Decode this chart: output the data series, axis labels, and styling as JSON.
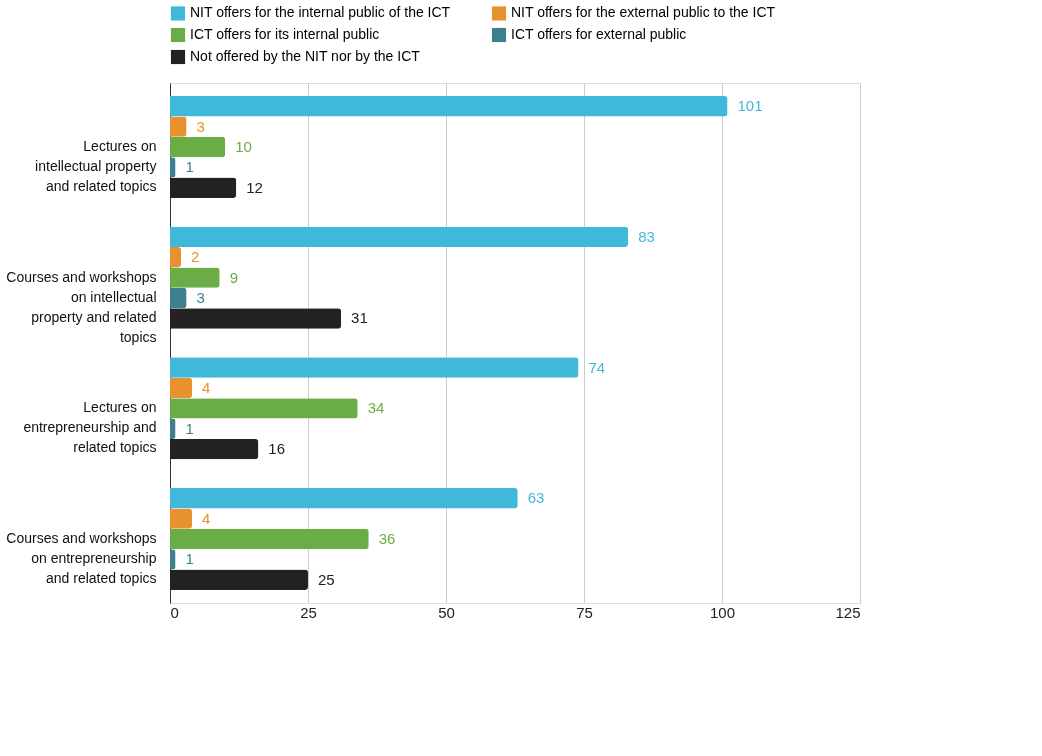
{
  "chart_data": {
    "type": "bar",
    "orientation": "horizontal",
    "categories": [
      "Lectures on intellectual property and related topics",
      "Courses and workshops on intellectual property and related topics",
      "Lectures on entrepreneurship and related topics",
      "Courses and workshops on entrepreneurship and related topics"
    ],
    "series": [
      {
        "name": "NIT offers for the internal public of the ICT",
        "color": "#3fb8d9",
        "values": [
          101,
          83,
          74,
          63
        ]
      },
      {
        "name": "NIT offers for the external public to the ICT",
        "color": "#e8912f",
        "values": [
          3,
          2,
          4,
          4
        ]
      },
      {
        "name": "ICT offers for its internal public",
        "color": "#6aac46",
        "values": [
          10,
          9,
          34,
          36
        ]
      },
      {
        "name": "ICT offers for external public",
        "color": "#3e7f8e",
        "values": [
          1,
          3,
          1,
          1
        ]
      },
      {
        "name": "Not offered by the NIT nor by the ICT",
        "color": "#222222",
        "values": [
          12,
          31,
          16,
          25
        ]
      }
    ],
    "xlim": [
      0,
      125
    ],
    "xticks": [
      0,
      25,
      50,
      75,
      100,
      125
    ],
    "grid": "x",
    "legend": "top",
    "data_labels": true
  }
}
